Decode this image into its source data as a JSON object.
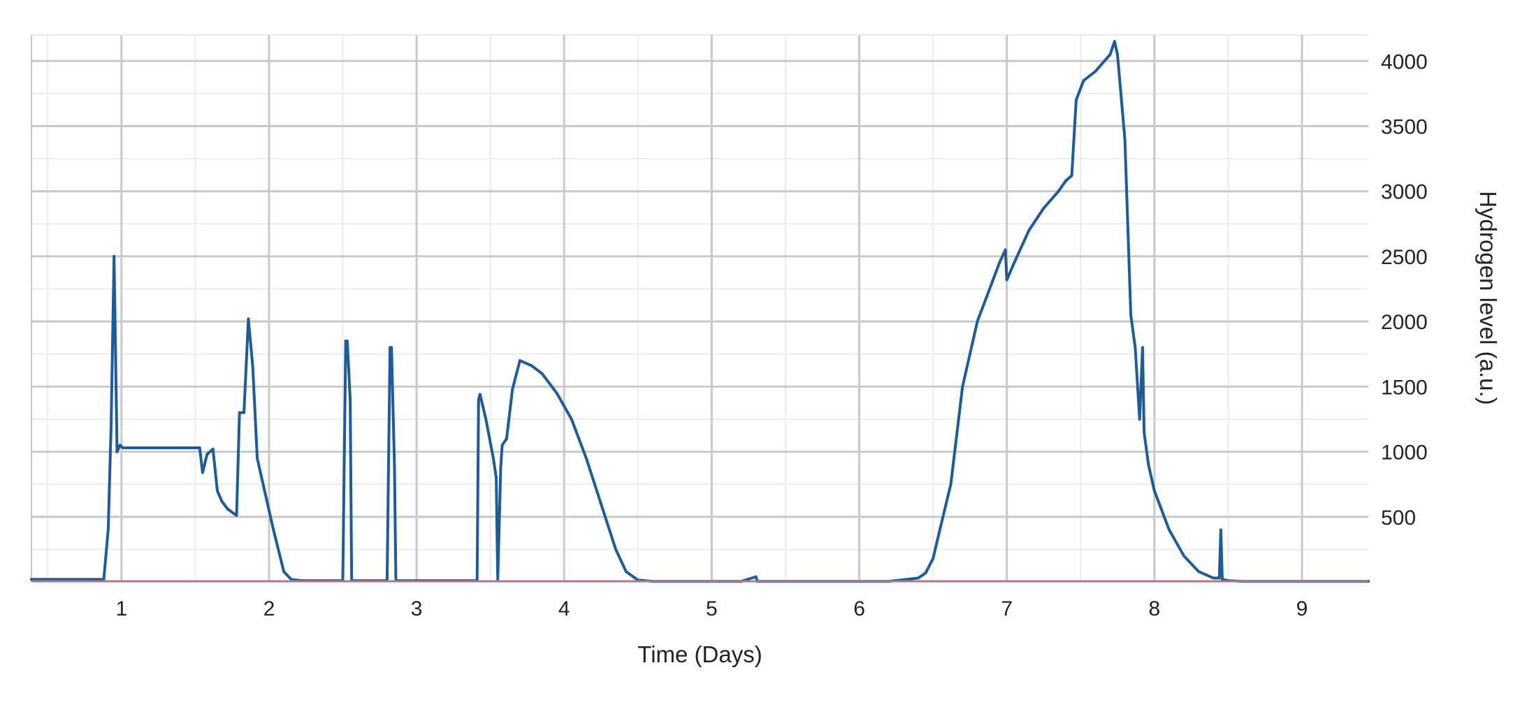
{
  "chart_data": {
    "type": "line",
    "title": "",
    "xlabel": "Time (Days)",
    "ylabel": "Hydrogen level (a.u.)",
    "xlim": [
      0.39,
      9.45
    ],
    "ylim": [
      0,
      4200
    ],
    "x_ticks": [
      1,
      2,
      3,
      4,
      5,
      6,
      7,
      8,
      9
    ],
    "y_ticks": [
      500,
      1000,
      1500,
      2000,
      2500,
      3000,
      3500,
      4000
    ],
    "x_tick_labels": [
      "1",
      "2",
      "3",
      "4",
      "5",
      "6",
      "7",
      "8",
      "9"
    ],
    "y_tick_labels": [
      "500",
      "1000",
      "1500",
      "2000",
      "2500",
      "3000",
      "3500",
      "4000"
    ],
    "y_axis_side": "right",
    "grid": true,
    "legend": "none",
    "colors": {
      "series": "#1f5b99",
      "baseline": "#b07a80",
      "grid_major": "#c9c9c9",
      "grid_minor": "#ececec"
    },
    "series": [
      {
        "x": [
          0.39,
          0.88,
          0.91,
          0.93,
          0.95,
          0.97,
          0.99,
          1.01,
          1.2,
          1.4,
          1.53,
          1.55,
          1.58,
          1.62,
          1.65,
          1.68,
          1.72,
          1.78,
          1.8,
          1.83,
          1.86,
          1.89,
          1.92,
          1.97,
          2.03,
          2.1,
          2.15,
          2.22,
          2.5,
          2.52,
          2.53,
          2.55,
          2.56,
          2.58,
          2.8,
          2.82,
          2.83,
          2.85,
          2.86,
          2.88,
          3.41,
          3.42,
          3.43,
          3.47,
          3.52,
          3.54,
          3.55,
          3.57,
          3.58,
          3.61,
          3.65,
          3.7,
          3.78,
          3.85,
          3.95,
          4.05,
          4.15,
          4.25,
          4.35,
          4.42,
          4.5,
          4.6,
          5.2,
          5.3,
          5.31,
          5.35,
          6.2,
          6.4,
          6.45,
          6.5,
          6.55,
          6.62,
          6.7,
          6.8,
          6.9,
          6.95,
          6.99,
          7.0,
          7.05,
          7.15,
          7.25,
          7.35,
          7.4,
          7.44,
          7.47,
          7.52,
          7.6,
          7.7,
          7.73,
          7.75,
          7.8,
          7.84,
          7.87,
          7.9,
          7.92,
          7.93,
          7.96,
          8.0,
          8.1,
          8.2,
          8.3,
          8.4,
          8.44,
          8.45,
          8.46,
          8.5,
          8.6,
          9.45
        ],
        "y": [
          20,
          20,
          400,
          1200,
          2500,
          1000,
          1050,
          1030,
          1030,
          1030,
          1030,
          840,
          980,
          1020,
          700,
          620,
          560,
          510,
          1300,
          1300,
          2020,
          1650,
          950,
          700,
          400,
          80,
          20,
          10,
          10,
          1850,
          1850,
          1400,
          10,
          10,
          10,
          1800,
          1800,
          900,
          10,
          10,
          10,
          1400,
          1440,
          1250,
          950,
          800,
          10,
          880,
          1050,
          1100,
          1480,
          1700,
          1660,
          1600,
          1450,
          1250,
          950,
          600,
          250,
          80,
          15,
          5,
          5,
          40,
          5,
          5,
          5,
          30,
          70,
          180,
          420,
          750,
          1500,
          2000,
          2300,
          2450,
          2550,
          2320,
          2450,
          2700,
          2870,
          3000,
          3080,
          3120,
          3700,
          3850,
          3920,
          4050,
          4150,
          4050,
          3400,
          2050,
          1800,
          1250,
          1800,
          1150,
          900,
          700,
          400,
          200,
          80,
          30,
          30,
          400,
          20,
          10,
          5,
          5
        ]
      }
    ]
  }
}
